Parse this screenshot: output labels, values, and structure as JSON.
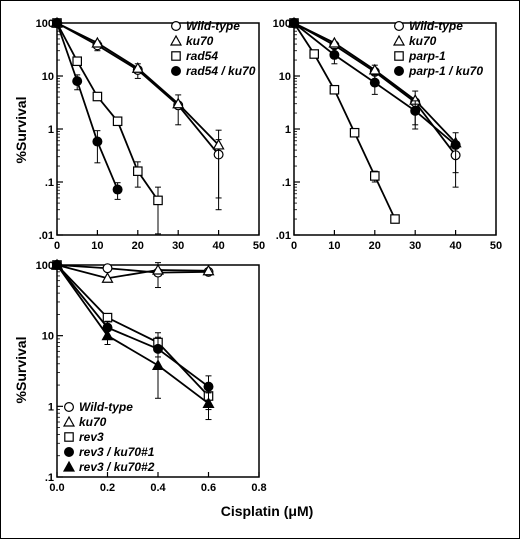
{
  "figure": {
    "xlabel": "Cisplatin (μM)"
  },
  "chart_data": [
    {
      "type": "line",
      "ylabel": "%Survival",
      "xscale": "linear",
      "yscale": "log",
      "xlim": [
        0,
        50
      ],
      "ylim": [
        0.01,
        100
      ],
      "xticks": [
        "0",
        "10",
        "20",
        "30",
        "40",
        "50"
      ],
      "yticks": [
        "100",
        "10",
        "1",
        ".1",
        ".01"
      ],
      "legend_position": "top-right",
      "series": [
        {
          "name": "Wild-type",
          "marker": "circle-open",
          "x": [
            0,
            10,
            20,
            30,
            40
          ],
          "y": [
            100,
            38,
            13,
            2.8,
            0.33
          ],
          "err": [
            null,
            8,
            4,
            1.6,
            0.3
          ]
        },
        {
          "name": "ku70",
          "marker": "triangle-open",
          "x": [
            0,
            10,
            20,
            30,
            40
          ],
          "y": [
            100,
            42,
            14,
            3.0,
            0.5
          ],
          "err": [
            null,
            null,
            null,
            null,
            0.45
          ]
        },
        {
          "name": "rad54",
          "marker": "square-open",
          "x": [
            0,
            5,
            10,
            15,
            20,
            25
          ],
          "y": [
            100,
            19,
            4.1,
            1.4,
            0.16,
            0.045
          ],
          "err": [
            null,
            null,
            null,
            null,
            0.08,
            0.035
          ]
        },
        {
          "name": "rad54 / ku70",
          "marker": "circle-filled",
          "x": [
            0,
            5,
            10,
            15
          ],
          "y": [
            100,
            8,
            0.58,
            0.072
          ],
          "err": [
            null,
            2.5,
            0.35,
            0.025
          ]
        }
      ]
    },
    {
      "type": "line",
      "ylabel": "",
      "xscale": "linear",
      "yscale": "log",
      "xlim": [
        0,
        50
      ],
      "ylim": [
        0.01,
        100
      ],
      "xticks": [
        "0",
        "10",
        "20",
        "30",
        "40",
        "50"
      ],
      "yticks": [
        "100",
        "10",
        "1",
        ".1",
        ".01"
      ],
      "legend_position": "top-right",
      "series": [
        {
          "name": "Wild-type",
          "marker": "circle-open",
          "x": [
            0,
            10,
            20,
            30,
            40
          ],
          "y": [
            100,
            38,
            12,
            3.2,
            0.32
          ],
          "err": [
            null,
            null,
            4,
            2,
            0.24
          ]
        },
        {
          "name": "ku70",
          "marker": "triangle-open",
          "x": [
            0,
            10,
            20,
            30,
            40
          ],
          "y": [
            100,
            42,
            13,
            3.5,
            0.55
          ],
          "err": [
            null,
            null,
            null,
            null,
            null
          ]
        },
        {
          "name": "parp-1",
          "marker": "square-open",
          "x": [
            0,
            5,
            10,
            15,
            20,
            25
          ],
          "y": [
            100,
            26,
            5.5,
            0.85,
            0.13,
            0.02
          ],
          "err": [
            null,
            null,
            null,
            null,
            0.03,
            null
          ]
        },
        {
          "name": "parp-1 / ku70",
          "marker": "circle-filled",
          "x": [
            0,
            10,
            20,
            30,
            40
          ],
          "y": [
            100,
            25,
            7.5,
            2.2,
            0.5
          ],
          "err": [
            null,
            8,
            3,
            1.2,
            0.35
          ]
        }
      ]
    },
    {
      "type": "line",
      "ylabel": "%Survival",
      "xscale": "linear",
      "yscale": "log",
      "xlim": [
        0,
        0.8
      ],
      "ylim": [
        0.1,
        100
      ],
      "xticks": [
        "0.0",
        "0.2",
        "0.4",
        "0.6",
        "0.8"
      ],
      "yticks": [
        "100",
        "10",
        "1",
        ".1"
      ],
      "legend_position": "bottom-left",
      "series": [
        {
          "name": "Wild-type",
          "marker": "circle-open",
          "x": [
            0,
            0.2,
            0.4,
            0.6
          ],
          "y": [
            100,
            90,
            78,
            80
          ],
          "err": [
            null,
            null,
            30,
            null
          ]
        },
        {
          "name": "ku70",
          "marker": "triangle-open",
          "x": [
            0,
            0.2,
            0.4,
            0.6
          ],
          "y": [
            100,
            65,
            85,
            83
          ],
          "err": [
            null,
            null,
            null,
            null
          ]
        },
        {
          "name": "rev3",
          "marker": "square-open",
          "x": [
            0,
            0.2,
            0.4,
            0.6
          ],
          "y": [
            100,
            18,
            8,
            1.4
          ],
          "err": [
            null,
            null,
            3,
            0.5
          ]
        },
        {
          "name": "rev3 / ku70#1",
          "marker": "circle-filled",
          "x": [
            0,
            0.2,
            0.4,
            0.6
          ],
          "y": [
            100,
            13,
            6.5,
            1.9
          ],
          "err": [
            null,
            3,
            3,
            0.8
          ]
        },
        {
          "name": "rev3 / ku70#2",
          "marker": "triangle-filled",
          "x": [
            0,
            0.2,
            0.4,
            0.6
          ],
          "y": [
            100,
            10,
            3.8,
            1.1
          ],
          "err": [
            null,
            2.5,
            2.5,
            0.45
          ]
        }
      ]
    }
  ]
}
